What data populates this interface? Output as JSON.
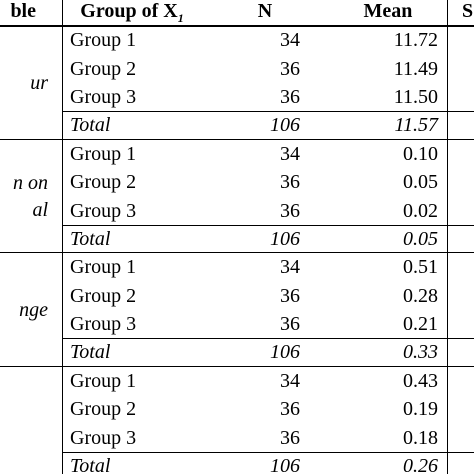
{
  "header": {
    "columns": [
      "ble",
      {
        "text": "Group of X",
        "subscript": "1"
      },
      "N",
      "Mean",
      "S"
    ]
  },
  "blocks": [
    {
      "label_lines": [
        "ur"
      ],
      "rows": [
        [
          "Group 1",
          "34",
          "11.72"
        ],
        [
          "Group 2",
          "36",
          "11.49"
        ],
        [
          "Group 3",
          "36",
          "11.50"
        ]
      ],
      "total": [
        "Total",
        "106",
        "11.57"
      ]
    },
    {
      "label_lines": [
        "n on",
        "al"
      ],
      "rows": [
        [
          "Group 1",
          "34",
          "0.10"
        ],
        [
          "Group 2",
          "36",
          "0.05"
        ],
        [
          "Group 3",
          "36",
          "0.02"
        ]
      ],
      "total": [
        "Total",
        "106",
        "0.05"
      ]
    },
    {
      "label_lines": [
        "nge"
      ],
      "rows": [
        [
          "Group 1",
          "34",
          "0.51"
        ],
        [
          "Group 2",
          "36",
          "0.28"
        ],
        [
          "Group 3",
          "36",
          "0.21"
        ]
      ],
      "total": [
        "Total",
        "106",
        "0.33"
      ]
    },
    {
      "rows": [
        [
          "Group 1",
          "34",
          "0.43"
        ],
        [
          "Group 2",
          "36",
          "0.19"
        ],
        [
          "Group 3",
          "36",
          "0.18"
        ]
      ],
      "total": [
        "Total",
        "106",
        "0.26"
      ]
    }
  ]
}
